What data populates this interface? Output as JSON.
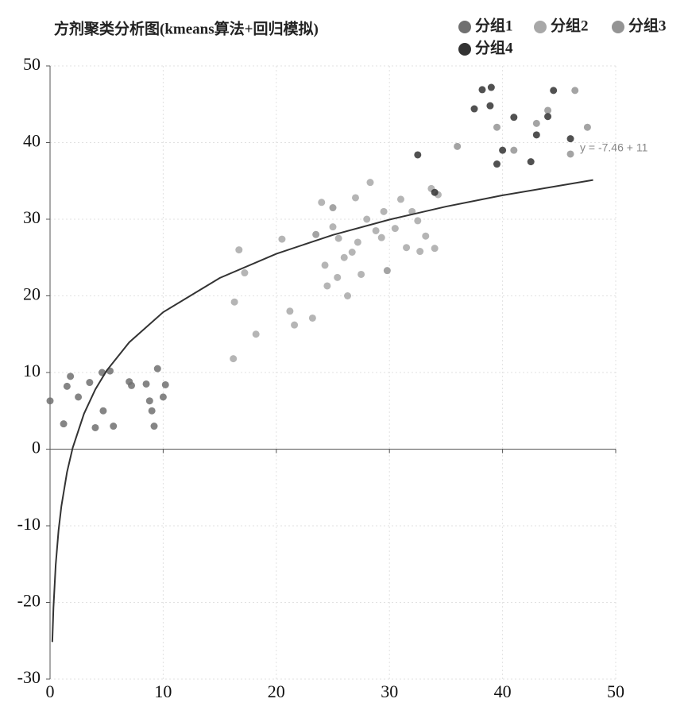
{
  "chart_data": {
    "type": "scatter",
    "title": "方剂聚类分析图(kmeans算法+回归模拟)",
    "xlim": [
      0,
      50
    ],
    "xticks": [
      0,
      10,
      20,
      30,
      40,
      50
    ],
    "ylim": [
      -30,
      50
    ],
    "yticks": [
      -30,
      -20,
      -10,
      0,
      10,
      20,
      30,
      40,
      50
    ],
    "grid": true,
    "legend": "top-right",
    "series": [
      {
        "name": "分组1",
        "color": "#707070",
        "x": [
          0,
          1.2,
          1.5,
          1.8,
          2.5,
          3.5,
          4,
          4.6,
          4.7,
          5.3,
          5.6,
          7,
          7.2,
          8.5,
          8.8,
          9,
          9.2,
          9.5,
          10.2,
          10
        ],
        "values": [
          6.3,
          3.3,
          8.2,
          9.5,
          6.8,
          8.7,
          2.8,
          10,
          5,
          10.2,
          3,
          8.8,
          8.3,
          8.5,
          6.3,
          5,
          3,
          10.5,
          8.4,
          6.8
        ]
      },
      {
        "name": "分组2",
        "color": "#a8a8a8",
        "x": [
          16.2,
          16.3,
          16.7,
          17.2,
          18.2,
          20.5,
          21.2,
          21.6,
          23.2,
          24,
          24.3,
          24.5,
          25,
          25.4,
          25.5,
          26,
          26.3,
          26.7,
          27,
          27.2,
          27.5,
          28,
          28.3,
          28.8,
          29.3,
          29.5,
          30.5,
          31,
          31.5,
          32,
          32.5,
          32.7,
          33.2,
          33.7,
          34,
          34.3
        ],
        "values": [
          11.8,
          19.2,
          26,
          23,
          15,
          27.4,
          18,
          16.2,
          17.1,
          32.2,
          24,
          21.3,
          29,
          22.4,
          27.5,
          25,
          20,
          25.7,
          32.8,
          27,
          22.8,
          30,
          34.8,
          28.5,
          27.6,
          31,
          28.8,
          32.6,
          26.3,
          31,
          29.8,
          25.8,
          27.8,
          34,
          26.2,
          33.2
        ]
      },
      {
        "name": "分组3",
        "color": "#949494",
        "x": [
          23.5,
          25,
          29.8,
          36,
          39.5,
          41,
          43,
          44,
          46,
          47.5,
          46.4
        ],
        "values": [
          28,
          31.5,
          23.3,
          39.5,
          42,
          39,
          42.5,
          44.2,
          38.5,
          42,
          46.8
        ]
      },
      {
        "name": "分组4",
        "color": "#333333",
        "x": [
          32.5,
          37.5,
          38.2,
          39,
          38.9,
          39.5,
          40,
          41,
          42.5,
          43,
          44,
          44.5,
          46,
          34
        ],
        "values": [
          38.4,
          44.4,
          46.9,
          47.2,
          44.8,
          37.2,
          39,
          43.3,
          37.5,
          41,
          43.4,
          46.8,
          40.5,
          33.5
        ]
      }
    ],
    "fit": {
      "label": "y = -7.46 + 11",
      "color": "#333333",
      "x": [
        0.2,
        0.3,
        0.5,
        0.75,
        1,
        1.5,
        2,
        3,
        4,
        5,
        7,
        10,
        15,
        20,
        25,
        30,
        35,
        40,
        48
      ],
      "values": [
        -25.16,
        -20.7,
        -15.08,
        -10.62,
        -7.46,
        -3,
        0.16,
        4.62,
        7.79,
        10.24,
        13.94,
        17.87,
        22.33,
        25.49,
        27.95,
        29.95,
        31.65,
        33.12,
        35.12
      ]
    }
  }
}
